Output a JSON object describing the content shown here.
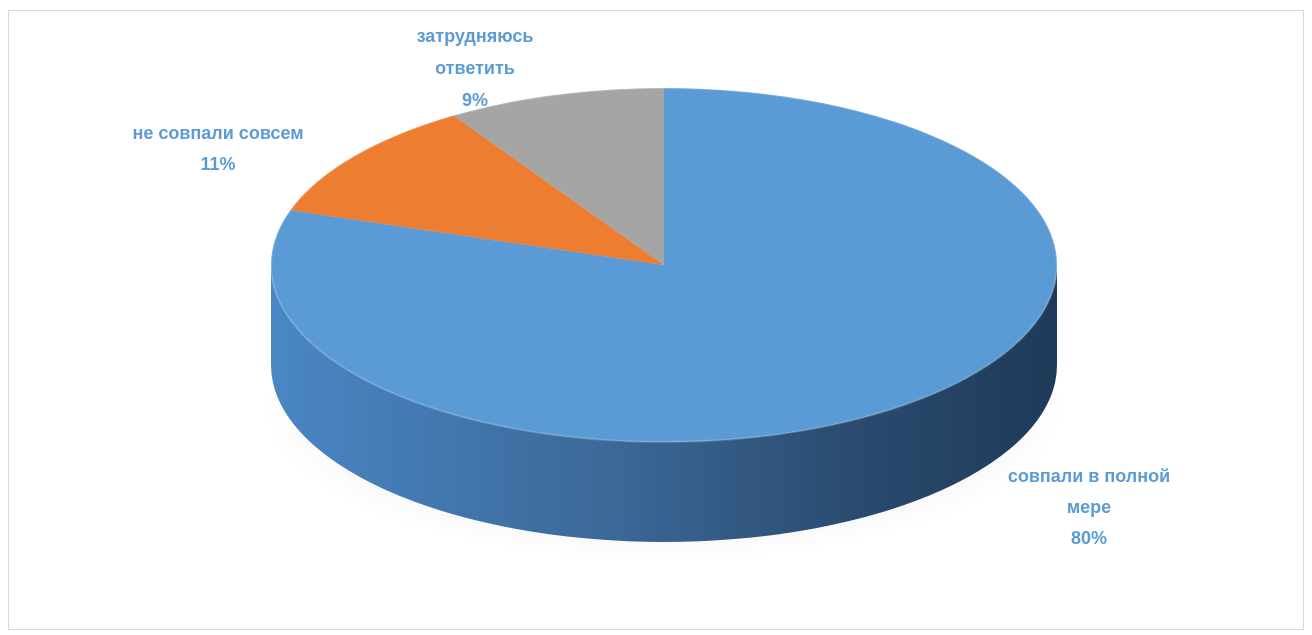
{
  "chart_data": {
    "type": "pie",
    "title": "",
    "three_d": true,
    "label_color": "#5b9bd5",
    "slices": [
      {
        "label_lines": [
          "совпали в полной",
          "мере"
        ],
        "value": 80,
        "value_label": "80%",
        "color": "#5b9bd5"
      },
      {
        "label_lines": [
          "не совпали совсем"
        ],
        "value": 11,
        "value_label": "11%",
        "color": "#ed7d31"
      },
      {
        "label_lines": [
          "затрудняюсь",
          "ответить"
        ],
        "value": 9,
        "value_label": "9%",
        "color": "#a5a5a5"
      }
    ]
  }
}
